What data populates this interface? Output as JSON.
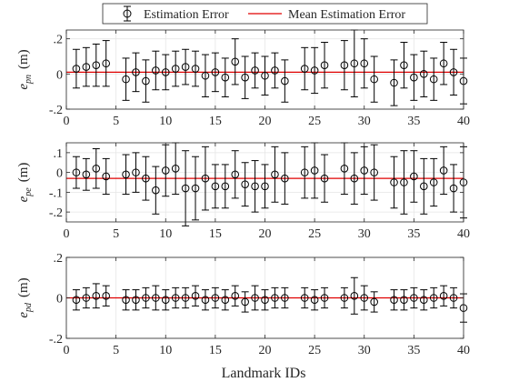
{
  "legend": {
    "entries": [
      {
        "label": "Estimation Error",
        "marker": "errorbar-circle",
        "color": "#000000"
      },
      {
        "label": "Mean Estimation Error",
        "marker": "line",
        "color": "#e00000"
      }
    ]
  },
  "xlabel": "Landmark IDs",
  "chart_data": [
    {
      "type": "errorbar",
      "ylabel_sym": "e",
      "ylabel_sub": "pn",
      "ylabel_unit": "(m)",
      "xlim": [
        0,
        40
      ],
      "ylim": [
        -0.2,
        0.25
      ],
      "xticks": [
        0,
        5,
        10,
        15,
        20,
        25,
        30,
        35,
        40
      ],
      "yticks": [
        -0.2,
        0,
        0.2
      ],
      "grid": true,
      "mean": 0.01,
      "x": [
        1,
        2,
        3,
        4,
        6,
        7,
        8,
        9,
        10,
        11,
        12,
        13,
        14,
        15,
        16,
        17,
        18,
        19,
        20,
        21,
        22,
        24,
        25,
        26,
        28,
        29,
        30,
        31,
        33,
        34,
        35,
        36,
        37,
        38,
        39,
        40
      ],
      "y": [
        0.03,
        0.04,
        0.05,
        0.06,
        -0.03,
        0.01,
        -0.04,
        0.02,
        0.01,
        0.03,
        0.04,
        0.03,
        -0.01,
        0.01,
        -0.02,
        0.07,
        -0.02,
        0.02,
        -0.01,
        0.02,
        -0.04,
        0.03,
        0.02,
        0.05,
        0.05,
        0.06,
        0.06,
        -0.03,
        -0.05,
        0.05,
        -0.02,
        0.0,
        -0.03,
        0.06,
        0.01,
        -0.04
      ],
      "err": [
        0.11,
        0.11,
        0.12,
        0.13,
        0.12,
        0.11,
        0.12,
        0.11,
        0.1,
        0.1,
        0.1,
        0.1,
        0.12,
        0.11,
        0.11,
        0.13,
        0.12,
        0.1,
        0.11,
        0.1,
        0.12,
        0.12,
        0.13,
        0.13,
        0.14,
        0.19,
        0.14,
        0.13,
        0.13,
        0.13,
        0.13,
        0.13,
        0.12,
        0.12,
        0.13,
        0.13
      ],
      "colors": {
        "marker": "#000000",
        "mean": "#e00000"
      }
    },
    {
      "type": "errorbar",
      "ylabel_sym": "e",
      "ylabel_sub": "pe",
      "ylabel_unit": "(m)",
      "xlim": [
        0,
        40
      ],
      "ylim": [
        -0.25,
        0.15
      ],
      "xticks": [
        0,
        5,
        10,
        15,
        20,
        25,
        30,
        35,
        40
      ],
      "yticks": [
        -0.2,
        -0.1,
        0,
        0.1
      ],
      "grid": true,
      "mean": -0.03,
      "x": [
        1,
        2,
        3,
        4,
        6,
        7,
        8,
        9,
        10,
        11,
        12,
        13,
        14,
        15,
        16,
        17,
        18,
        19,
        20,
        21,
        22,
        24,
        25,
        26,
        28,
        29,
        30,
        31,
        33,
        34,
        35,
        36,
        37,
        38,
        39,
        40
      ],
      "y": [
        0.0,
        -0.01,
        0.02,
        -0.02,
        -0.01,
        0.0,
        -0.03,
        -0.09,
        0.01,
        0.02,
        -0.08,
        -0.08,
        -0.03,
        -0.07,
        -0.07,
        -0.01,
        -0.06,
        -0.07,
        -0.07,
        -0.01,
        -0.03,
        0.0,
        0.01,
        -0.03,
        0.02,
        -0.03,
        0.01,
        0.0,
        -0.05,
        -0.05,
        -0.02,
        -0.07,
        -0.05,
        0.01,
        -0.08,
        -0.05
      ],
      "err": [
        0.08,
        0.08,
        0.1,
        0.09,
        0.1,
        0.1,
        0.11,
        0.12,
        0.13,
        0.13,
        0.19,
        0.16,
        0.16,
        0.11,
        0.11,
        0.12,
        0.11,
        0.13,
        0.11,
        0.14,
        0.13,
        0.13,
        0.14,
        0.12,
        0.13,
        0.13,
        0.12,
        0.14,
        0.13,
        0.16,
        0.13,
        0.14,
        0.12,
        0.12,
        0.12,
        0.18
      ],
      "colors": {
        "marker": "#000000",
        "mean": "#e00000"
      }
    },
    {
      "type": "errorbar",
      "ylabel_sym": "e",
      "ylabel_sub": "pd",
      "ylabel_unit": "(m)",
      "xlim": [
        0,
        40
      ],
      "ylim": [
        -0.2,
        0.2
      ],
      "xticks": [
        0,
        5,
        10,
        15,
        20,
        25,
        30,
        35,
        40
      ],
      "yticks": [
        -0.2,
        0,
        0.2
      ],
      "grid": true,
      "mean": 0.0,
      "x": [
        1,
        2,
        3,
        4,
        6,
        7,
        8,
        9,
        10,
        11,
        12,
        13,
        14,
        15,
        16,
        17,
        18,
        19,
        20,
        21,
        22,
        24,
        25,
        26,
        28,
        29,
        30,
        31,
        33,
        34,
        35,
        36,
        37,
        38,
        39,
        40
      ],
      "y": [
        -0.01,
        0.0,
        0.01,
        0.01,
        -0.01,
        -0.01,
        0.0,
        0.0,
        -0.01,
        0.0,
        0.0,
        0.01,
        -0.01,
        0.0,
        -0.01,
        0.01,
        -0.02,
        0.0,
        -0.01,
        0.0,
        0.0,
        0.0,
        -0.01,
        0.0,
        0.0,
        0.01,
        0.0,
        -0.02,
        -0.01,
        -0.01,
        0.0,
        -0.01,
        0.0,
        0.01,
        0.0,
        -0.05
      ],
      "err": [
        0.05,
        0.05,
        0.06,
        0.05,
        0.05,
        0.05,
        0.05,
        0.06,
        0.05,
        0.05,
        0.05,
        0.05,
        0.05,
        0.05,
        0.05,
        0.05,
        0.05,
        0.06,
        0.05,
        0.05,
        0.05,
        0.05,
        0.05,
        0.05,
        0.05,
        0.09,
        0.06,
        0.05,
        0.05,
        0.05,
        0.05,
        0.05,
        0.05,
        0.05,
        0.05,
        0.07
      ],
      "colors": {
        "marker": "#000000",
        "mean": "#e00000"
      }
    }
  ]
}
